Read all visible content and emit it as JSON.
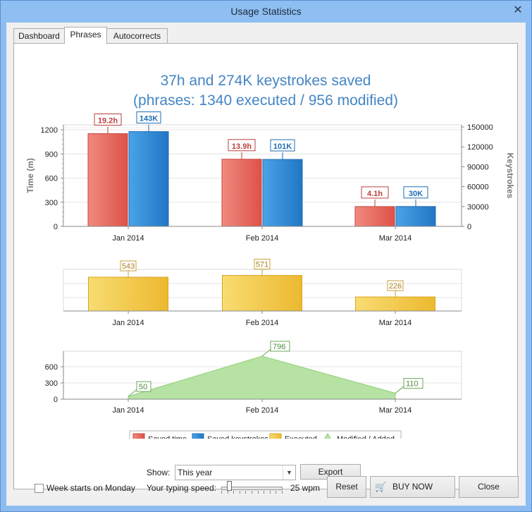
{
  "window": {
    "title": "Usage Statistics"
  },
  "tabs": [
    {
      "label": "Dashboard",
      "active": false
    },
    {
      "label": "Phrases",
      "active": true
    },
    {
      "label": "Autocorrects",
      "active": false
    }
  ],
  "headline": {
    "line1": "37h and 274K keystrokes saved",
    "line2": "(phrases: 1340 executed / 956 modified)"
  },
  "colors": {
    "saved_time": "#e8625a",
    "saved_keystrokes": "#2f88d2",
    "executed": "#f0c43a",
    "modified": "#b6e3a3",
    "headline": "#4485c3"
  },
  "chart_data": [
    {
      "type": "bar",
      "categories": [
        "Jan 2014",
        "Feb 2014",
        "Mar 2014"
      ],
      "ylabel": "Time (m)",
      "ylabel2": "Keystrokes",
      "ylim": [
        0,
        1200
      ],
      "y2lim": [
        0,
        150000
      ],
      "yticks": [
        "0",
        "300",
        "600",
        "900",
        "1200"
      ],
      "y2ticks": [
        "0",
        "30000",
        "60000",
        "90000",
        "120000",
        "150000"
      ],
      "series": [
        {
          "name": "Saved time",
          "values": [
            1152,
            834,
            246
          ],
          "labels": [
            "19.2h",
            "13.9h",
            "4.1h"
          ],
          "axis": "left"
        },
        {
          "name": "Saved keystrokes",
          "values": [
            143000,
            101000,
            30000
          ],
          "labels": [
            "143K",
            "101K",
            "30K"
          ],
          "axis": "right"
        }
      ]
    },
    {
      "type": "bar",
      "categories": [
        "Jan 2014",
        "Feb 2014",
        "Mar 2014"
      ],
      "ylim": [
        0,
        600
      ],
      "series": [
        {
          "name": "Executed",
          "values": [
            543,
            571,
            226
          ],
          "labels": [
            "543",
            "571",
            "226"
          ]
        }
      ]
    },
    {
      "type": "area",
      "categories": [
        "Jan 2014",
        "Feb 2014",
        "Mar 2014"
      ],
      "ylim": [
        0,
        900
      ],
      "yticks": [
        "0",
        "300",
        "600"
      ],
      "series": [
        {
          "name": "Modified / Added",
          "values": [
            50,
            796,
            110
          ],
          "labels": [
            "50",
            "796",
            "110"
          ]
        }
      ]
    }
  ],
  "legend": [
    "Saved time",
    "Saved keystrokes",
    "Executed",
    "Modified / Added"
  ],
  "show": {
    "label": "Show:",
    "value": "This year"
  },
  "export_label": "Export",
  "bottom": {
    "week_starts_label": "Week starts on Monday",
    "week_starts_checked": false,
    "typing_speed_label": "Your typing speed:",
    "typing_speed_value": "25 wpm",
    "typing_speed_level": 0.1,
    "reset_label": "Reset",
    "buy_label": "BUY NOW",
    "close_label": "Close"
  }
}
